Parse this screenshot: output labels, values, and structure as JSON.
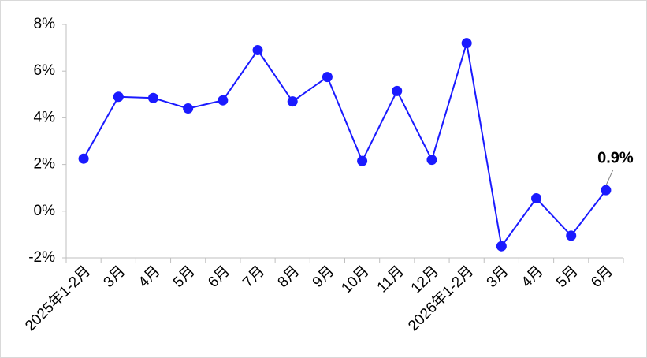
{
  "chart_data": {
    "type": "line",
    "categories": [
      "2025年1-2月",
      "3月",
      "4月",
      "5月",
      "6月",
      "7月",
      "8月",
      "9月",
      "10月",
      "11月",
      "12月",
      "2026年1-2月",
      "3月",
      "4月",
      "5月",
      "6月"
    ],
    "series": [
      {
        "color": "#1a1aff",
        "values": [
          2.25,
          4.9,
          4.85,
          4.4,
          4.75,
          6.9,
          4.7,
          5.75,
          2.15,
          5.15,
          2.2,
          7.2,
          -1.5,
          0.55,
          -1.05,
          0.9
        ],
        "value_labels": [
          null,
          null,
          null,
          null,
          null,
          null,
          null,
          null,
          null,
          null,
          null,
          null,
          null,
          null,
          null,
          "0.9%"
        ]
      }
    ],
    "ylim": [
      -2,
      8
    ],
    "yticks": [
      {
        "value": -2,
        "label": "-2%"
      },
      {
        "value": 0,
        "label": "0%"
      },
      {
        "value": 2,
        "label": "2%"
      },
      {
        "value": 4,
        "label": "4%"
      },
      {
        "value": 6,
        "label": "6%"
      },
      {
        "value": 8,
        "label": "8%"
      }
    ],
    "grid": false
  }
}
